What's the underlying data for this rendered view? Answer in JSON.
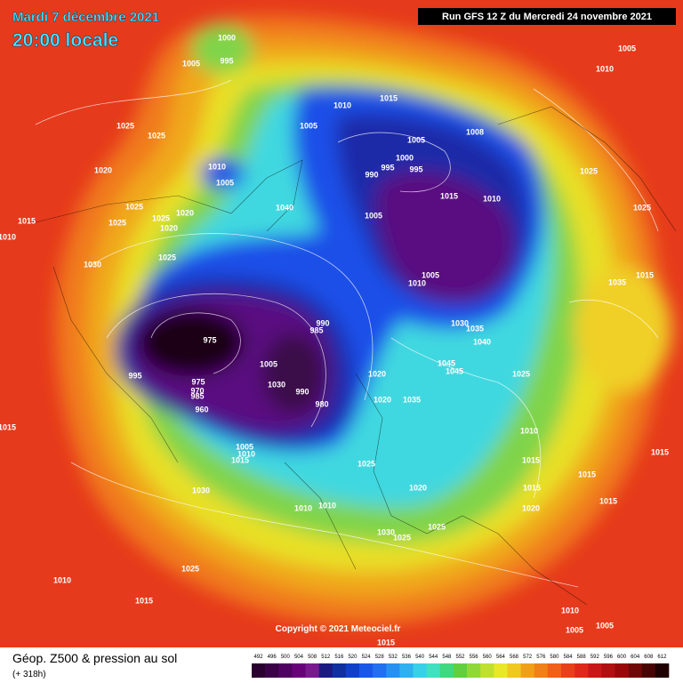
{
  "header": {
    "title": "Mardi 7 décembre 2021",
    "time": "20:00 locale",
    "run": "Run GFS 12 Z du Mercredi 24 novembre 2021"
  },
  "footer": {
    "copyright": "Copyright © 2021 Meteociel.fr",
    "product": "Géop. Z500 & pression au sol",
    "lead": "(+ 318h)"
  },
  "legend": {
    "values": [
      492,
      496,
      500,
      504,
      508,
      512,
      516,
      520,
      524,
      528,
      532,
      536,
      540,
      544,
      548,
      552,
      556,
      560,
      564,
      568,
      572,
      576,
      580,
      584,
      588,
      592,
      596,
      600,
      604,
      608,
      612
    ],
    "colors": [
      "#2a0030",
      "#3a0048",
      "#500060",
      "#68007a",
      "#7a1890",
      "#1a1a80",
      "#1030a0",
      "#1040c8",
      "#1858e8",
      "#2070f0",
      "#2890f0",
      "#30b0f0",
      "#38d0e8",
      "#40e0c0",
      "#40d880",
      "#60d040",
      "#90d838",
      "#c0e030",
      "#e8e828",
      "#f0c820",
      "#f0a018",
      "#f08018",
      "#f06018",
      "#e84018",
      "#e02818",
      "#c81818",
      "#b01010",
      "#980808",
      "#700808",
      "#480404",
      "#200000"
    ]
  },
  "isobar_labels": [
    1000,
    995,
    1005,
    1005,
    1010,
    1015,
    1010,
    1025,
    1025,
    1005,
    1005,
    1008,
    1000,
    995,
    995,
    990,
    1020,
    1010,
    1005,
    1025,
    1015,
    1010,
    1025,
    1040,
    1025,
    1005,
    1015,
    1025,
    1025,
    1020,
    1020,
    1025,
    1030,
    1010,
    1005,
    1010,
    1035,
    1015,
    975,
    990,
    985,
    1030,
    1035,
    1040,
    1025,
    1020,
    1045,
    1045,
    995,
    1005,
    975,
    970,
    985,
    960,
    990,
    980,
    1030,
    1020,
    1035,
    1010,
    1015,
    1005,
    1010,
    1015,
    1015,
    1025,
    1015,
    1015,
    1020,
    1030,
    1015,
    1015,
    1020,
    1010,
    1010,
    1025,
    1030,
    1025,
    1025,
    1010,
    1015,
    1010,
    1005,
    1005,
    1015
  ]
}
